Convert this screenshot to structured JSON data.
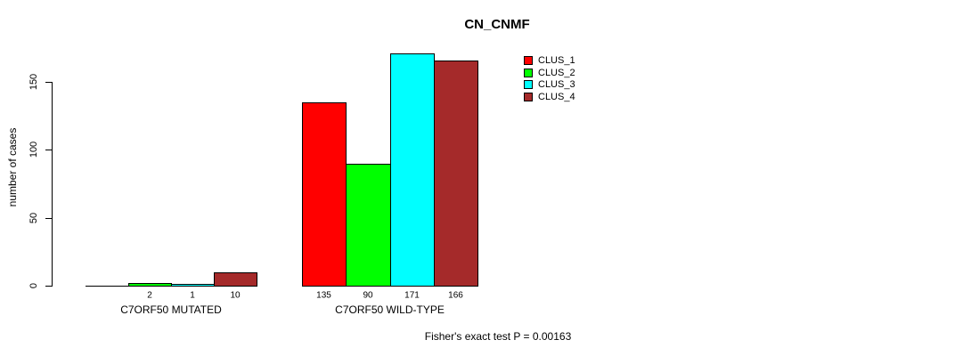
{
  "figure": {
    "background": "#ffffff",
    "text_color": "#000000",
    "axis_color": "#000000"
  },
  "chart_data": {
    "type": "bar",
    "title": "CN_CNMF",
    "ylabel": "number of cases",
    "xlabel": "",
    "annotation": "Fisher's exact test P = 0.00163",
    "categories": [
      "C7ORF50 MUTATED",
      "C7ORF50 WILD-TYPE"
    ],
    "series": [
      {
        "name": "CLUS_1",
        "color": "#ff0000",
        "values": [
          0,
          135
        ]
      },
      {
        "name": "CLUS_2",
        "color": "#00ff00",
        "values": [
          2,
          90
        ]
      },
      {
        "name": "CLUS_3",
        "color": "#00ffff",
        "values": [
          1,
          171
        ]
      },
      {
        "name": "CLUS_4",
        "color": "#a52a2a",
        "values": [
          10,
          166
        ]
      }
    ],
    "bar_count_labels": [
      [
        "",
        "2",
        "1",
        "10"
      ],
      [
        "135",
        "90",
        "171",
        "166"
      ]
    ],
    "yticks": [
      0,
      50,
      100,
      150
    ],
    "ylim": [
      0,
      175
    ],
    "grid": false,
    "legend": {
      "position": "inside-top-right",
      "entries": [
        "CLUS_1",
        "CLUS_2",
        "CLUS_3",
        "CLUS_4"
      ]
    }
  }
}
